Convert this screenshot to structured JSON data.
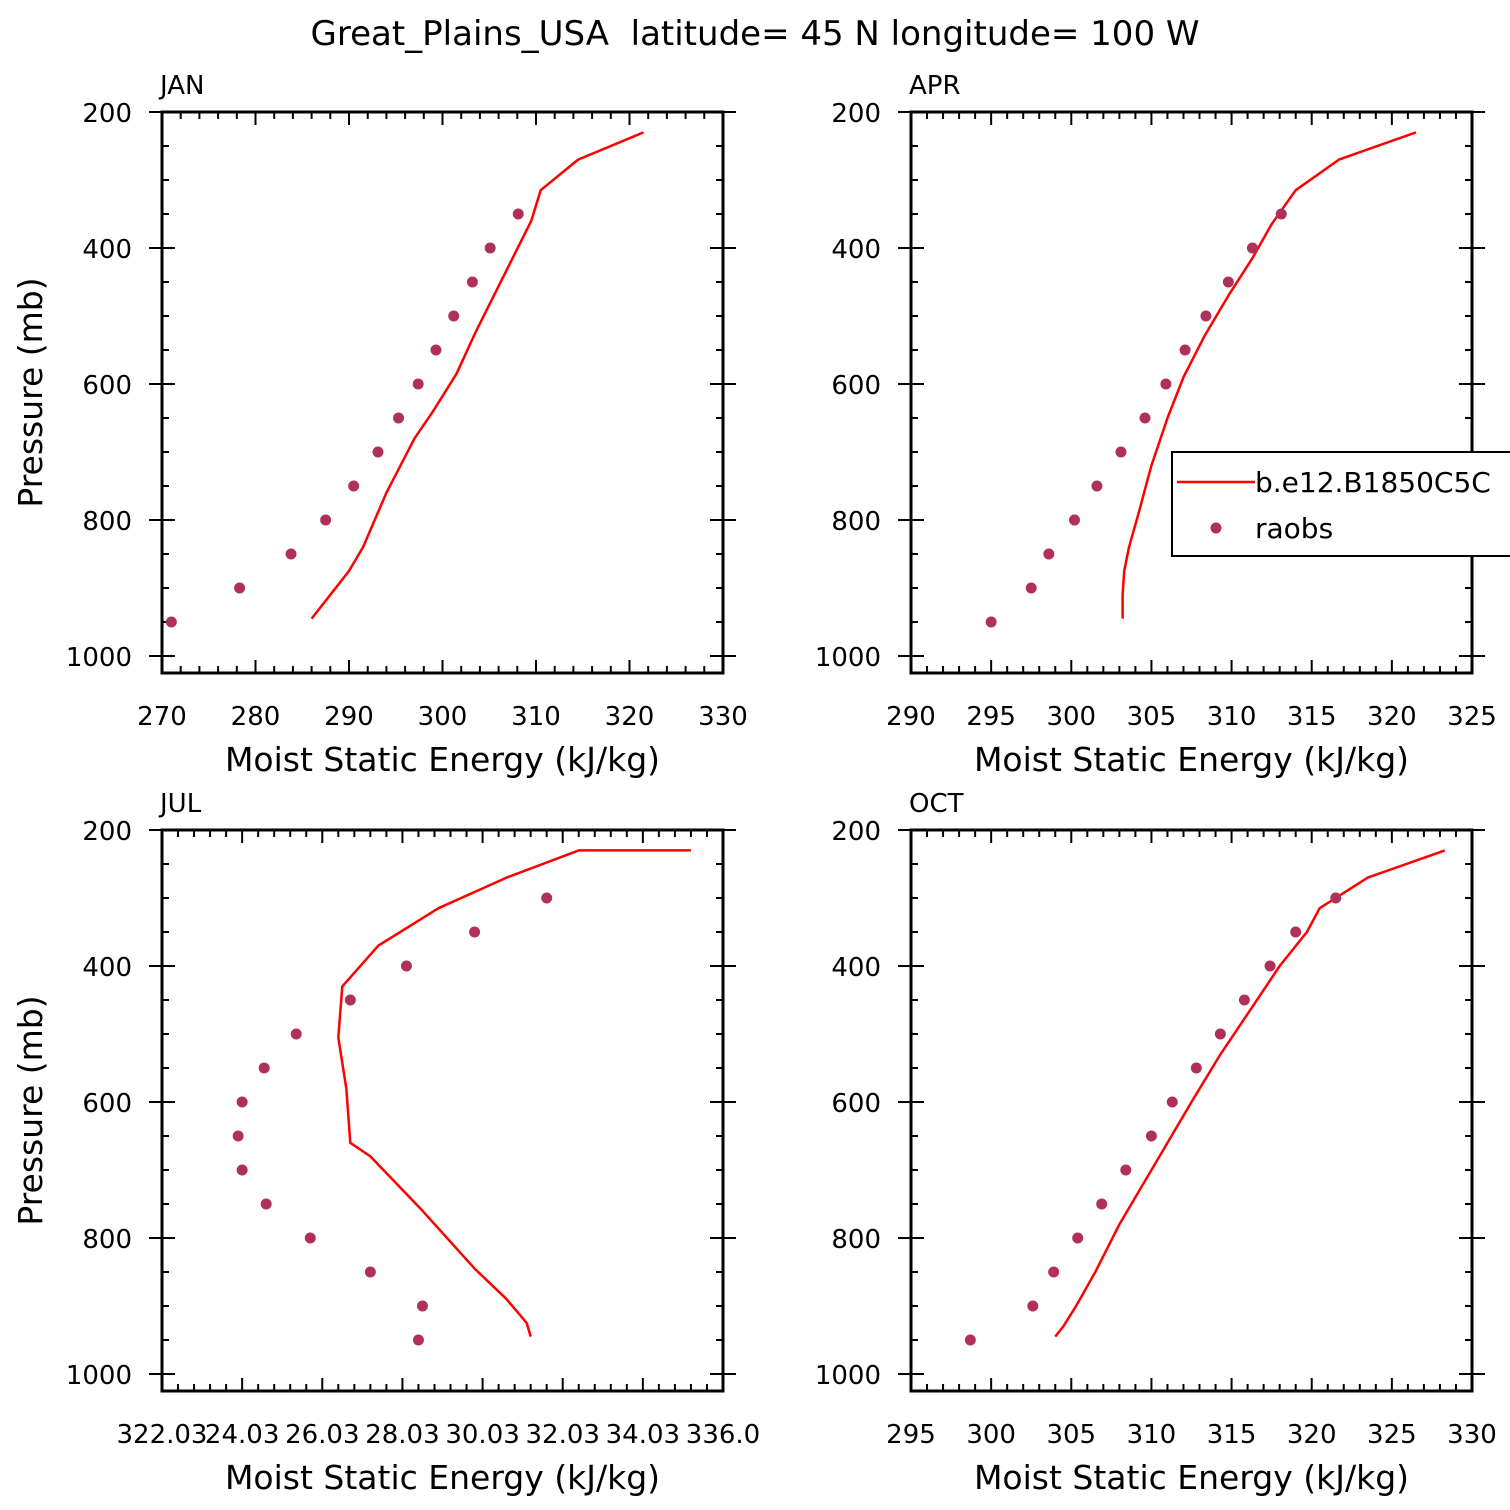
{
  "figure": {
    "title": "Great_Plains_USA  latitude= 45 N longitude= 100 W"
  },
  "legend": {
    "model_label": "b.e12.B1850C5C",
    "obs_label": "raobs"
  },
  "colors": {
    "model_line": "#ff0000",
    "obs_marker": "#b0305c",
    "axes": "#000000"
  },
  "chart_data": [
    {
      "type": "line",
      "panel_label": "JAN",
      "xlabel": "Moist Static Energy (kJ/kg)",
      "ylabel": "Pressure (mb)",
      "xlim": [
        270,
        330
      ],
      "ylim": [
        200,
        1025
      ],
      "y_inverted": true,
      "xticks": [
        270,
        280,
        290,
        300,
        310,
        320,
        330
      ],
      "xtick_labels": [
        "270",
        "280",
        "290",
        "300",
        "310",
        "320",
        "330"
      ],
      "yticks": [
        200,
        400,
        600,
        800,
        1000
      ],
      "ytick_labels": [
        "200",
        "400",
        "600",
        "800",
        "1000"
      ],
      "series": [
        {
          "name": "b.e12.B1850C5C",
          "style": "line",
          "x": [
            286.0,
            288.0,
            290.0,
            291.5,
            294.0,
            297.0,
            299.0,
            301.5,
            303.5,
            305.5,
            307.5,
            309.5,
            310.5,
            314.5,
            321.5
          ],
          "y": [
            945,
            910,
            875,
            840,
            760,
            680,
            640,
            585,
            525,
            470,
            415,
            360,
            315,
            270,
            230
          ]
        },
        {
          "name": "raobs",
          "style": "markers",
          "x": [
            271.0,
            278.3,
            283.8,
            287.5,
            290.5,
            293.1,
            295.3,
            297.4,
            299.3,
            301.2,
            303.2,
            305.1,
            308.1
          ],
          "y": [
            950,
            900,
            850,
            800,
            750,
            700,
            650,
            600,
            550,
            500,
            450,
            400,
            350
          ]
        }
      ]
    },
    {
      "type": "line",
      "panel_label": "APR",
      "xlabel": "Moist Static Energy (kJ/kg)",
      "ylabel": "",
      "xlim": [
        290,
        325
      ],
      "ylim": [
        200,
        1025
      ],
      "y_inverted": true,
      "xticks": [
        290,
        295,
        300,
        305,
        310,
        315,
        320,
        325
      ],
      "xtick_labels": [
        "290",
        "295",
        "300",
        "305",
        "310",
        "315",
        "320",
        "325"
      ],
      "yticks": [
        200,
        400,
        600,
        800,
        1000
      ],
      "ytick_labels": [
        "200",
        "400",
        "600",
        "800",
        "1000"
      ],
      "legend_position": "right",
      "series": [
        {
          "name": "b.e12.B1850C5C",
          "style": "line",
          "x": [
            303.2,
            303.2,
            303.3,
            303.6,
            304.2,
            305.0,
            306.0,
            307.0,
            308.3,
            309.8,
            311.3,
            312.5,
            314.0,
            316.7,
            321.5
          ],
          "y": [
            945,
            910,
            875,
            840,
            790,
            720,
            650,
            590,
            530,
            470,
            415,
            365,
            315,
            270,
            230
          ]
        },
        {
          "name": "raobs",
          "style": "markers",
          "x": [
            295.0,
            297.5,
            298.6,
            300.2,
            301.6,
            303.1,
            304.6,
            305.9,
            307.1,
            308.4,
            309.8,
            311.3,
            313.1
          ],
          "y": [
            950,
            900,
            850,
            800,
            750,
            700,
            650,
            600,
            550,
            500,
            450,
            400,
            350
          ]
        }
      ]
    },
    {
      "type": "line",
      "panel_label": "JUL",
      "xlabel": "Moist Static Energy (kJ/kg)",
      "ylabel": "Pressure (mb)",
      "xlim": [
        322.03,
        336.03
      ],
      "ylim": [
        200,
        1025
      ],
      "y_inverted": true,
      "xticks": [
        322.03,
        324.03,
        326.03,
        328.03,
        330.03,
        332.03,
        334.03,
        336.03
      ],
      "xtick_labels": [
        "322.03",
        "24.03",
        "26.03",
        "28.03",
        "30.03",
        "32.03",
        "34.03",
        "336.0"
      ],
      "yticks": [
        200,
        400,
        600,
        800,
        1000
      ],
      "ytick_labels": [
        "200",
        "400",
        "600",
        "800",
        "1000"
      ],
      "series": [
        {
          "name": "b.e12.B1850C5C",
          "style": "line",
          "x": [
            331.23,
            331.13,
            330.63,
            329.83,
            328.53,
            327.23,
            326.73,
            326.63,
            326.43,
            326.53,
            327.43,
            328.93,
            330.63,
            332.43,
            335.23
          ],
          "y": [
            945,
            925,
            890,
            845,
            760,
            680,
            660,
            580,
            505,
            430,
            370,
            315,
            270,
            230,
            230
          ]
        },
        {
          "name": "raobs",
          "style": "markers",
          "x": [
            328.43,
            328.53,
            327.23,
            325.73,
            324.63,
            324.03,
            323.93,
            324.03,
            324.58,
            325.38,
            326.73,
            328.13,
            329.83,
            331.63
          ],
          "y": [
            950,
            900,
            850,
            800,
            750,
            700,
            650,
            600,
            550,
            500,
            450,
            400,
            350,
            300
          ]
        }
      ]
    },
    {
      "type": "line",
      "panel_label": "OCT",
      "xlabel": "Moist Static Energy (kJ/kg)",
      "ylabel": "",
      "xlim": [
        295,
        330
      ],
      "ylim": [
        200,
        1025
      ],
      "y_inverted": true,
      "xticks": [
        295,
        300,
        305,
        310,
        315,
        320,
        325,
        330
      ],
      "xtick_labels": [
        "295",
        "300",
        "305",
        "310",
        "315",
        "320",
        "325",
        "330"
      ],
      "yticks": [
        200,
        400,
        600,
        800,
        1000
      ],
      "ytick_labels": [
        "200",
        "400",
        "600",
        "800",
        "1000"
      ],
      "series": [
        {
          "name": "b.e12.B1850C5C",
          "style": "line",
          "x": [
            304.0,
            304.5,
            305.3,
            306.5,
            308.0,
            309.5,
            311.0,
            312.5,
            314.3,
            316.3,
            318.0,
            319.7,
            320.5,
            323.5,
            328.3
          ],
          "y": [
            945,
            930,
            900,
            850,
            780,
            720,
            660,
            600,
            530,
            460,
            400,
            350,
            315,
            270,
            230
          ]
        },
        {
          "name": "raobs",
          "style": "markers",
          "x": [
            298.7,
            302.6,
            303.9,
            305.4,
            306.9,
            308.4,
            310.0,
            311.3,
            312.8,
            314.3,
            315.8,
            317.4,
            319.0,
            321.5
          ],
          "y": [
            950,
            900,
            850,
            800,
            750,
            700,
            650,
            600,
            550,
            500,
            450,
            400,
            350,
            300
          ]
        }
      ]
    }
  ]
}
